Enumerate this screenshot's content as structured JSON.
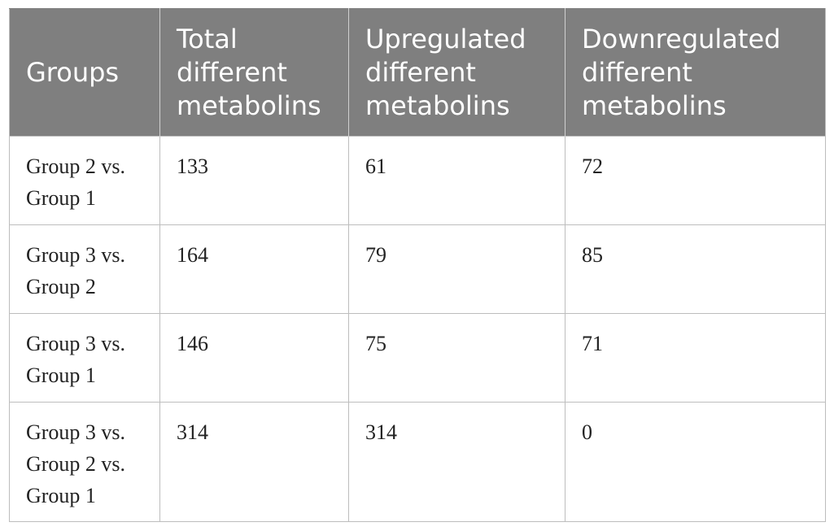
{
  "table": {
    "headers": [
      "Groups",
      "Total different metabolins",
      "Upregulated different metabolins",
      "Downregulated different metabolins"
    ],
    "rows": [
      [
        "Group 2 vs. Group 1",
        "133",
        "61",
        "72"
      ],
      [
        "Group 3 vs. Group 2",
        "164",
        "79",
        "85"
      ],
      [
        "Group 3 vs. Group 1",
        "146",
        "75",
        "71"
      ],
      [
        "Group 3 vs. Group 2 vs. Group 1",
        "314",
        "314",
        "0"
      ]
    ]
  }
}
